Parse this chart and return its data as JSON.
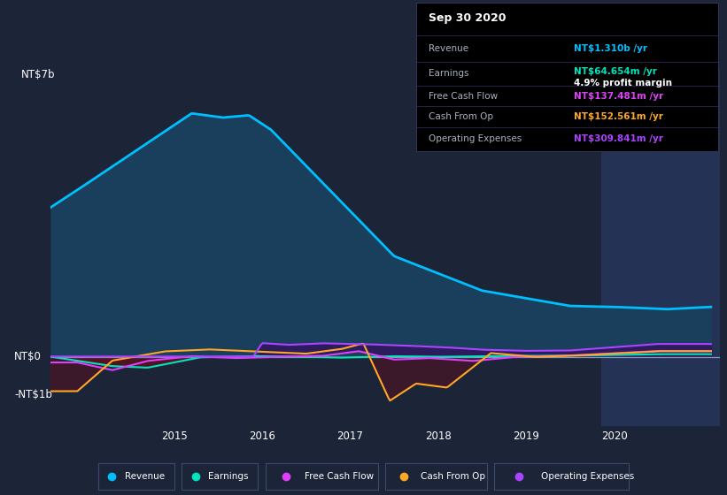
{
  "bg_color": "#1c2438",
  "chart_bg": "#1c2438",
  "highlight_bg": "#243255",
  "ylabel_text": "NT$7b",
  "ylabel2_text": "NT$0",
  "ylabel3_text": "-NT$1b",
  "x_ticks": [
    2015,
    2016,
    2017,
    2018,
    2019,
    2020
  ],
  "revenue_color": "#00bfff",
  "revenue_fill": "#1a3f5c",
  "earnings_color": "#00e5bb",
  "fcf_color": "#e040fb",
  "cashop_color": "#ffa726",
  "opex_color": "#aa44ff",
  "opex_fill": "#2e1a5e",
  "earnings_neg_fill": "#5a1020",
  "cashop_neg_fill": "#5a1020",
  "fcf_teal_fill": "#1a4455",
  "grid_color": "#2a3a5a",
  "legend_bg": "#1c2438",
  "legend_border": "#3a4a6a",
  "info_box_bg": "#000000",
  "info_box_border": "#3a4a6a",
  "info_date": "Sep 30 2020",
  "info_revenue_label": "Revenue",
  "info_revenue_val": "NT$1.310b /yr",
  "info_earnings_label": "Earnings",
  "info_earnings_val": "NT$64.654m /yr",
  "info_margin": "4.9% profit margin",
  "info_fcf_label": "Free Cash Flow",
  "info_fcf_val": "NT$137.481m /yr",
  "info_cashop_label": "Cash From Op",
  "info_cashop_val": "NT$152.561m /yr",
  "info_opex_label": "Operating Expenses",
  "info_opex_val": "NT$309.841m /yr",
  "ylim_min": -1800000000.0,
  "ylim_max": 7500000000.0,
  "xlim_start": 2013.6,
  "xlim_end": 2021.2,
  "highlight_start": 2019.85,
  "highlight_end": 2021.2
}
